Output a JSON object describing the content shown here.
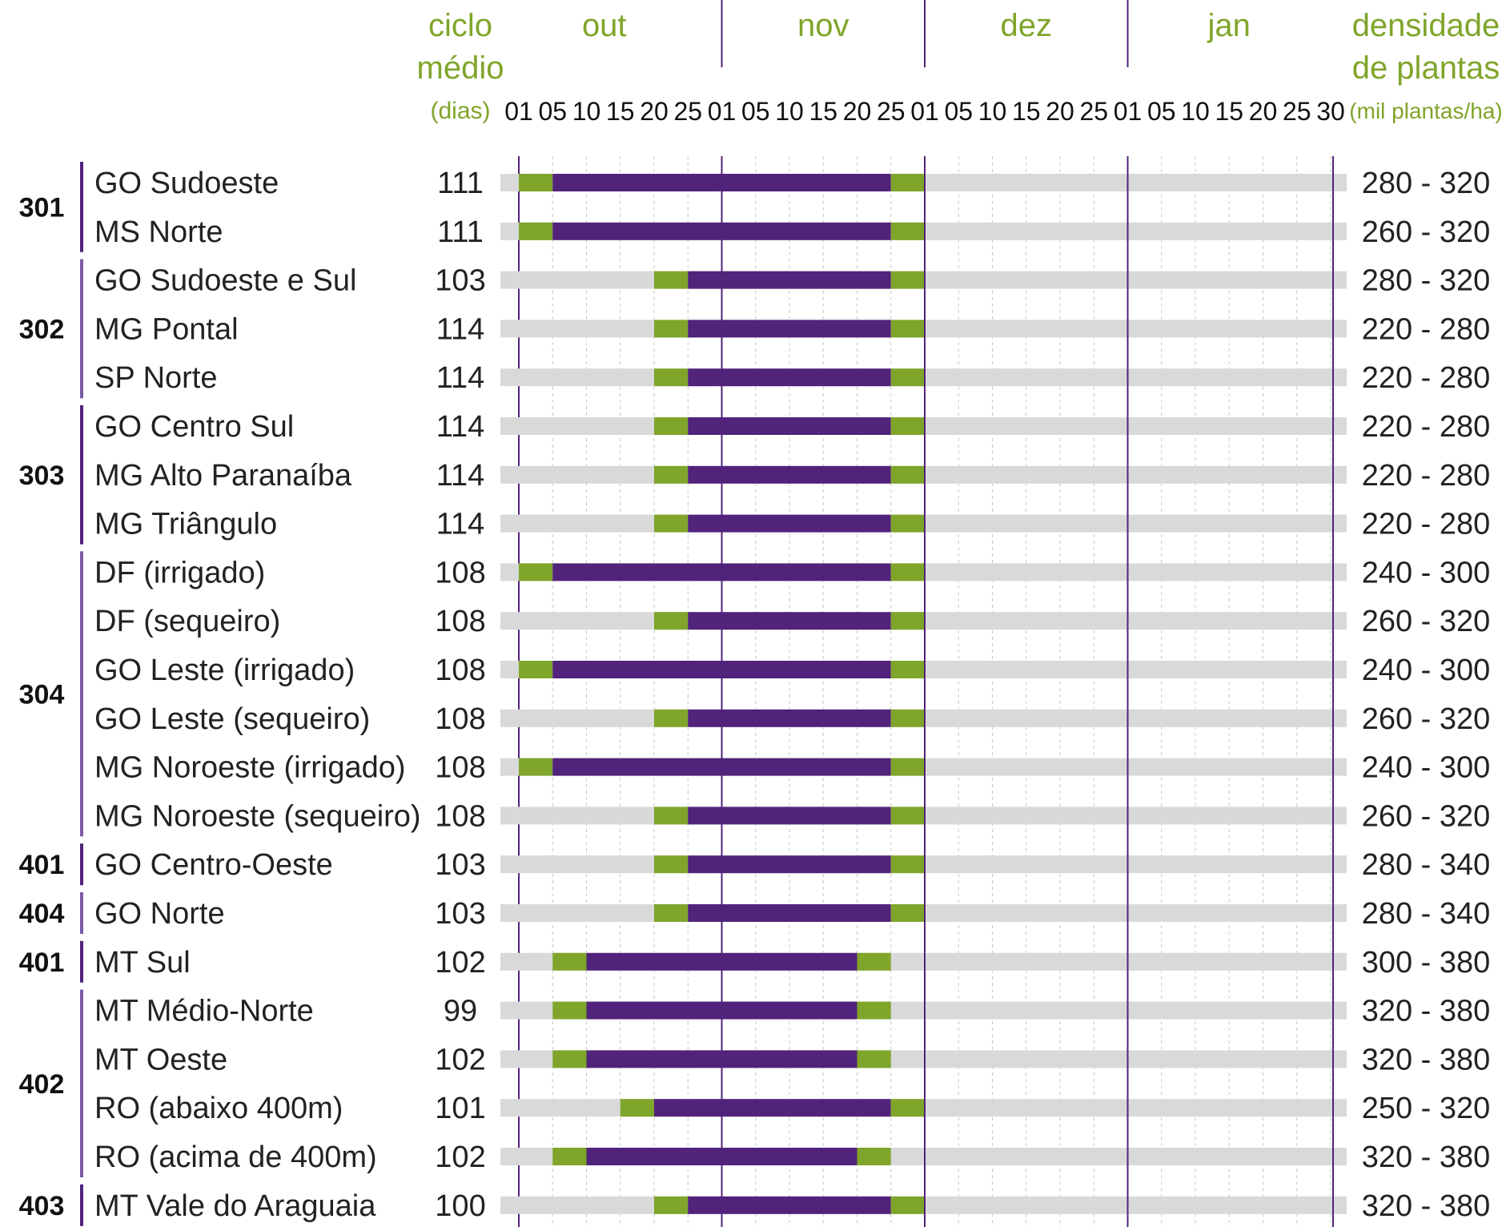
{
  "chart_data": {
    "type": "gantt",
    "headers": {
      "cycle": [
        "ciclo",
        "médio",
        "(dias)"
      ],
      "density": [
        "densidade",
        "de plantas",
        "(mil plantas/ha)"
      ]
    },
    "months": [
      {
        "label": "out",
        "days": [
          "01",
          "05",
          "10",
          "15",
          "20",
          "25"
        ]
      },
      {
        "label": "nov",
        "days": [
          "01",
          "05",
          "10",
          "15",
          "20",
          "25"
        ]
      },
      {
        "label": "dez",
        "days": [
          "01",
          "05",
          "10",
          "15",
          "20",
          "25"
        ]
      },
      {
        "label": "jan",
        "days": [
          "01",
          "05",
          "10",
          "15",
          "20",
          "25",
          "30"
        ]
      }
    ],
    "colors": {
      "background_bar": "#d9d9d9",
      "edge_window": "#7fa52a",
      "ideal_window": "#51237b",
      "month_line": "#51237b",
      "group_line": "#7b5ba8",
      "header_text": "#7fa52a"
    },
    "groups": [
      {
        "id": "301",
        "rows": [
          {
            "region": "GO Sudoeste",
            "cycle": "111",
            "density": "280 - 320",
            "green_start": "out 01",
            "purple_start": "out 05",
            "purple_end": "nov 25",
            "green_end": "dez 01"
          },
          {
            "region": "MS Norte",
            "cycle": "111",
            "density": "260 - 320",
            "green_start": "out 01",
            "purple_start": "out 05",
            "purple_end": "nov 25",
            "green_end": "dez 01"
          }
        ]
      },
      {
        "id": "302",
        "rows": [
          {
            "region": "GO Sudoeste e Sul",
            "cycle": "103",
            "density": "280 - 320",
            "green_start": "out 20",
            "purple_start": "out 25",
            "purple_end": "nov 25",
            "green_end": "dez 01"
          },
          {
            "region": "MG Pontal",
            "cycle": "114",
            "density": "220 - 280",
            "green_start": "out 20",
            "purple_start": "out 25",
            "purple_end": "nov 25",
            "green_end": "dez 01"
          },
          {
            "region": "SP Norte",
            "cycle": "114",
            "density": "220 - 280",
            "green_start": "out 20",
            "purple_start": "out 25",
            "purple_end": "nov 25",
            "green_end": "dez 01"
          }
        ]
      },
      {
        "id": "303",
        "rows": [
          {
            "region": "GO Centro Sul",
            "cycle": "114",
            "density": "220 - 280",
            "green_start": "out 20",
            "purple_start": "out 25",
            "purple_end": "nov 25",
            "green_end": "dez 01"
          },
          {
            "region": "MG Alto Paranaíba",
            "cycle": "114",
            "density": "220 - 280",
            "green_start": "out 20",
            "purple_start": "out 25",
            "purple_end": "nov 25",
            "green_end": "dez 01"
          },
          {
            "region": "MG Triângulo",
            "cycle": "114",
            "density": "220 - 280",
            "green_start": "out 20",
            "purple_start": "out 25",
            "purple_end": "nov 25",
            "green_end": "dez 01"
          }
        ]
      },
      {
        "id": "304",
        "rows": [
          {
            "region": "DF (irrigado)",
            "cycle": "108",
            "density": "240 - 300",
            "green_start": "out 01",
            "purple_start": "out 05",
            "purple_end": "nov 25",
            "green_end": "dez 01"
          },
          {
            "region": "DF (sequeiro)",
            "cycle": "108",
            "density": "260 - 320",
            "green_start": "out 20",
            "purple_start": "out 25",
            "purple_end": "nov 25",
            "green_end": "dez 01"
          },
          {
            "region": "GO Leste (irrigado)",
            "cycle": "108",
            "density": "240 - 300",
            "green_start": "out 01",
            "purple_start": "out 05",
            "purple_end": "nov 25",
            "green_end": "dez 01"
          },
          {
            "region": "GO Leste (sequeiro)",
            "cycle": "108",
            "density": "260 - 320",
            "green_start": "out 20",
            "purple_start": "out 25",
            "purple_end": "nov 25",
            "green_end": "dez 01"
          },
          {
            "region": "MG Noroeste (irrigado)",
            "cycle": "108",
            "density": "240 - 300",
            "green_start": "out 01",
            "purple_start": "out 05",
            "purple_end": "nov 25",
            "green_end": "dez 01"
          },
          {
            "region": "MG Noroeste (sequeiro)",
            "cycle": "108",
            "density": "260 - 320",
            "green_start": "out 20",
            "purple_start": "out 25",
            "purple_end": "nov 25",
            "green_end": "dez 01"
          }
        ]
      },
      {
        "id": "401",
        "rows": [
          {
            "region": "GO Centro-Oeste",
            "cycle": "103",
            "density": "280 - 340",
            "green_start": "out 20",
            "purple_start": "out 25",
            "purple_end": "nov 25",
            "green_end": "dez 01"
          }
        ]
      },
      {
        "id": "404",
        "rows": [
          {
            "region": "GO Norte",
            "cycle": "103",
            "density": "280 - 340",
            "green_start": "out 20",
            "purple_start": "out 25",
            "purple_end": "nov 25",
            "green_end": "dez 01"
          }
        ]
      },
      {
        "id": "401",
        "rows": [
          {
            "region": "MT Sul",
            "cycle": "102",
            "density": "300 - 380",
            "green_start": "out 05",
            "purple_start": "out 10",
            "purple_end": "nov 20",
            "green_end": "nov 25"
          }
        ]
      },
      {
        "id": "402",
        "rows": [
          {
            "region": "MT Médio-Norte",
            "cycle": "99",
            "density": "320 - 380",
            "green_start": "out 05",
            "purple_start": "out 10",
            "purple_end": "nov 20",
            "green_end": "nov 25"
          },
          {
            "region": "MT Oeste",
            "cycle": "102",
            "density": "320 - 380",
            "green_start": "out 05",
            "purple_start": "out 10",
            "purple_end": "nov 20",
            "green_end": "nov 25"
          },
          {
            "region": "RO (abaixo 400m)",
            "cycle": "101",
            "density": "250 - 320",
            "green_start": "out 15",
            "purple_start": "out 20",
            "purple_end": "nov 25",
            "green_end": "dez 01"
          },
          {
            "region": "RO (acima de 400m)",
            "cycle": "102",
            "density": "320 - 380",
            "green_start": "out 05",
            "purple_start": "out 10",
            "purple_end": "nov 20",
            "green_end": "nov 25"
          }
        ]
      },
      {
        "id": "403",
        "rows": [
          {
            "region": "MT Vale do Araguaia",
            "cycle": "100",
            "density": "320 - 380",
            "green_start": "out 20",
            "purple_start": "out 25",
            "purple_end": "nov 25",
            "green_end": "dez 01"
          }
        ]
      }
    ]
  }
}
